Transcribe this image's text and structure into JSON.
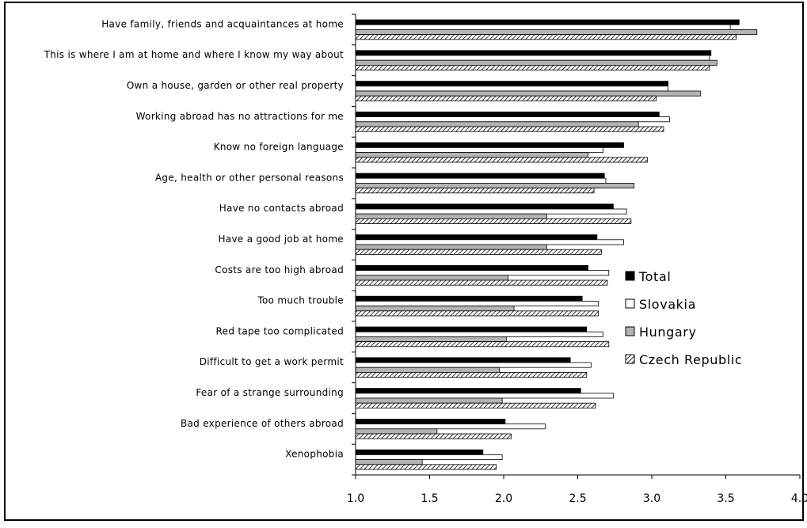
{
  "chart_data": {
    "type": "bar",
    "orientation": "horizontal",
    "title": "",
    "xlabel": "",
    "ylabel": "",
    "xlim": [
      1.0,
      4.0
    ],
    "x_ticks": [
      "1.0",
      "1.5",
      "2.0",
      "2.5",
      "3.0",
      "3.5",
      "4.0"
    ],
    "grid": false,
    "legend_position": "right-center",
    "categories": [
      "Have family, friends and acquaintances at home",
      "This is where I am at home and where I know my way about",
      "Own a house, garden or other real property",
      "Working abroad has no attractions for me",
      "Know no foreign language",
      "Age, health or other personal reasons",
      "Have no contacts abroad",
      "Have a good job at home",
      "Costs are too high abroad",
      "Too much trouble",
      "Red tape too complicated",
      "Difficult to get a work permit",
      "Fear of a strange surrounding",
      "Bad experience of others abroad",
      "Xenophobia"
    ],
    "series": [
      {
        "name": "Total",
        "color": "#000000",
        "pattern": "solid",
        "values": [
          3.59,
          3.4,
          3.11,
          3.05,
          2.81,
          2.68,
          2.74,
          2.63,
          2.57,
          2.53,
          2.56,
          2.45,
          2.52,
          2.01,
          1.86
        ]
      },
      {
        "name": "Slovakia",
        "color": "#ffffff",
        "pattern": "open",
        "values": [
          3.53,
          3.39,
          3.11,
          3.12,
          2.67,
          2.69,
          2.83,
          2.81,
          2.71,
          2.64,
          2.67,
          2.59,
          2.74,
          2.28,
          1.99
        ]
      },
      {
        "name": "Hungary",
        "color": "#b3b3b3",
        "pattern": "gray",
        "values": [
          3.71,
          3.44,
          3.33,
          2.91,
          2.57,
          2.88,
          2.29,
          2.29,
          2.03,
          2.07,
          2.02,
          1.97,
          1.99,
          1.55,
          1.45
        ]
      },
      {
        "name": "Czech Republic",
        "color": "#ffffff",
        "pattern": "diagonal-hatch",
        "values": [
          3.57,
          3.39,
          3.03,
          3.08,
          2.97,
          2.61,
          2.86,
          2.66,
          2.7,
          2.64,
          2.71,
          2.56,
          2.62,
          2.05,
          1.95
        ]
      }
    ]
  }
}
